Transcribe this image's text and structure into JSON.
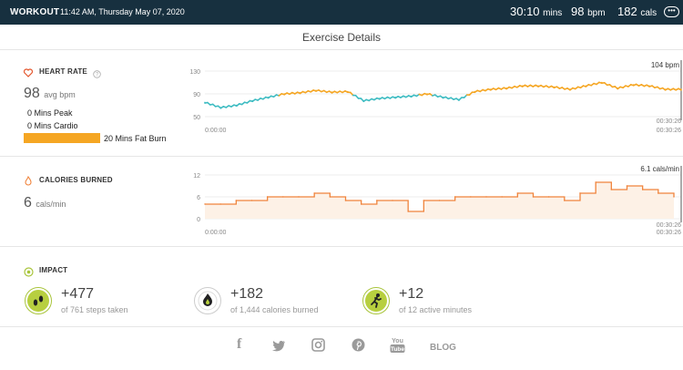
{
  "header": {
    "workout_label": "WORKOUT",
    "datetime": "11:42 AM, Thursday May 07, 2020",
    "duration_value": "30:10",
    "duration_unit": "mins",
    "bpm_value": "98",
    "bpm_unit": "bpm",
    "cals_value": "182",
    "cals_unit": "cals",
    "more_icon": "ellipsis-icon"
  },
  "page_title": "Exercise Details",
  "heart_rate": {
    "label": "HEART RATE",
    "icon": "heart-icon",
    "help_icon": "question-icon",
    "avg_value": "98",
    "avg_unit": "avg bpm",
    "peak": "0 Mins Peak",
    "cardio": "0 Mins Cardio",
    "fat_burn": "20 Mins Fat Burn",
    "colors": {
      "fat_burn": "#f5a623",
      "below": "#3ebcc2"
    }
  },
  "calories": {
    "label": "CALORIES BURNED",
    "icon": "flame-icon",
    "value": "6",
    "unit": "cals/min",
    "color": "#f0843c"
  },
  "chart_data": [
    {
      "type": "line",
      "title": "",
      "y_ticks": [
        "130",
        "90",
        "50"
      ],
      "ylim": [
        50,
        130
      ],
      "x_start_label": "0:00:00",
      "x_end_label": "00:30:26",
      "current_label": "104 bpm",
      "x_minutes": [
        0,
        1,
        2,
        3,
        4,
        5,
        6,
        7,
        8,
        9,
        10,
        11,
        12,
        13,
        14,
        15,
        16,
        17,
        18,
        19,
        20,
        21,
        22,
        23,
        24,
        25,
        26,
        27,
        28,
        29,
        30
      ],
      "values": [
        75,
        66,
        70,
        78,
        84,
        90,
        92,
        96,
        93,
        94,
        78,
        82,
        84,
        86,
        90,
        84,
        80,
        94,
        98,
        100,
        104,
        104,
        102,
        98,
        104,
        110,
        100,
        106,
        104,
        98,
        98
      ]
    },
    {
      "type": "area",
      "title": "",
      "y_ticks": [
        "12",
        "6",
        "0"
      ],
      "ylim": [
        0,
        12
      ],
      "x_start_label": "0:00:00",
      "x_end_label": "00:30:26",
      "current_label": "6.1 cals/min",
      "x_minutes": [
        0,
        1,
        2,
        3,
        4,
        5,
        6,
        7,
        8,
        9,
        10,
        11,
        12,
        13,
        14,
        15,
        16,
        17,
        18,
        19,
        20,
        21,
        22,
        23,
        24,
        25,
        26,
        27,
        28,
        29,
        30
      ],
      "values": [
        4,
        4,
        5,
        5,
        6,
        6,
        6,
        7,
        6,
        5,
        4,
        5,
        5,
        2,
        5,
        5,
        6,
        6,
        6,
        6,
        7,
        6,
        6,
        5,
        7,
        10,
        8,
        9,
        8,
        7,
        6
      ]
    }
  ],
  "impact": {
    "label": "IMPACT",
    "items": [
      {
        "icon": "footsteps-icon",
        "value": "+477",
        "sub": "of 761 steps taken"
      },
      {
        "icon": "flame-icon",
        "value": "+182",
        "sub": "of 1,444 calories burned"
      },
      {
        "icon": "running-person-icon",
        "value": "+12",
        "sub": "of 12 active minutes"
      }
    ]
  },
  "footer": {
    "facebook": "f",
    "twitter_icon": "twitter-icon",
    "instagram_icon": "instagram-icon",
    "pinterest_icon": "pinterest-icon",
    "youtube": "You",
    "youtube_tube": "Tube",
    "blog": "BLOG"
  }
}
